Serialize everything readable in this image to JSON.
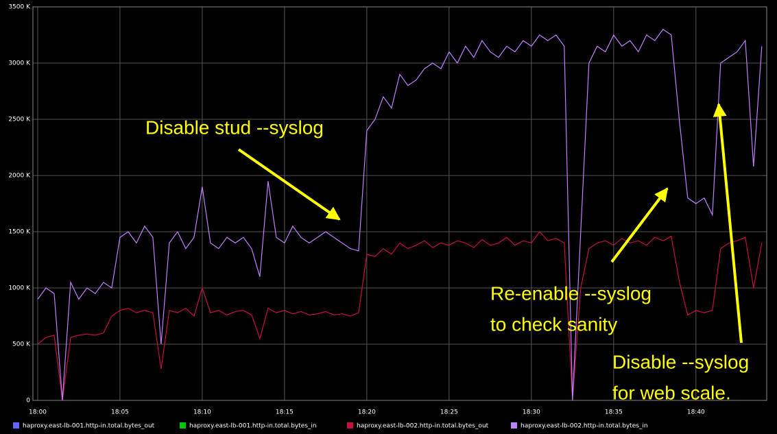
{
  "chart_data": {
    "type": "line",
    "x": [
      0,
      0.5,
      1,
      1.5,
      2,
      2.5,
      3,
      3.5,
      4,
      4.5,
      5,
      5.5,
      6,
      6.5,
      7,
      7.5,
      8,
      8.5,
      9,
      9.5,
      10,
      10.5,
      11,
      11.5,
      12,
      12.5,
      13,
      13.5,
      14,
      14.5,
      15,
      15.5,
      16,
      16.5,
      17,
      17.5,
      18,
      18.5,
      19,
      19.5,
      20,
      20.5,
      21,
      21.5,
      22,
      22.5,
      23,
      23.5,
      24,
      24.5,
      25,
      25.5,
      26,
      26.5,
      27,
      27.5,
      28,
      28.5,
      29,
      29.5,
      30,
      30.5,
      31,
      31.5,
      32,
      32.5,
      33,
      33.5,
      34,
      34.5,
      35,
      35.5,
      36,
      36.5,
      37,
      37.5,
      38,
      38.5,
      39,
      39.5,
      40,
      40.5,
      41,
      41.5,
      42,
      42.5,
      43,
      43.5,
      44
    ],
    "series": [
      {
        "name": "haproxy.east-lb-001.http-in.total.bytes_out",
        "color": "#6464ff",
        "values": [
          null,
          null,
          null,
          null,
          null,
          null,
          null,
          null,
          null,
          null,
          null,
          null,
          null,
          null,
          null,
          null,
          null,
          null,
          null,
          null,
          null,
          null,
          null,
          null,
          null,
          null,
          null,
          null,
          null,
          null,
          null,
          null,
          null,
          null,
          null,
          null,
          null,
          null,
          null,
          null,
          null,
          null,
          null,
          null,
          null,
          null,
          null,
          null,
          null,
          null,
          null,
          null,
          null,
          null,
          null,
          null,
          null,
          null,
          null,
          null,
          null,
          null,
          null,
          null,
          null,
          null,
          null,
          null,
          null,
          null,
          null,
          null,
          null,
          null,
          null,
          null,
          null,
          null,
          null,
          null,
          null,
          null,
          null,
          null,
          null,
          null,
          null,
          null,
          null
        ]
      },
      {
        "name": "haproxy.east-lb-001.http-in.total.bytes_in",
        "color": "#00c800",
        "values": [
          null,
          null,
          null,
          null,
          null,
          null,
          null,
          null,
          null,
          null,
          null,
          null,
          null,
          null,
          null,
          null,
          null,
          null,
          null,
          null,
          null,
          null,
          null,
          null,
          null,
          null,
          null,
          null,
          null,
          null,
          null,
          null,
          null,
          null,
          null,
          null,
          null,
          null,
          null,
          null,
          null,
          null,
          null,
          null,
          null,
          null,
          null,
          null,
          null,
          null,
          null,
          null,
          null,
          null,
          null,
          null,
          null,
          null,
          null,
          null,
          null,
          null,
          null,
          null,
          null,
          null,
          null,
          null,
          null,
          null,
          null,
          null,
          null,
          null,
          null,
          null,
          null,
          null,
          null,
          null,
          null,
          null,
          null,
          null,
          null,
          null,
          null,
          null,
          null
        ]
      },
      {
        "name": "haproxy.east-lb-002.http-in.total.bytes_out",
        "color": "#c8103c",
        "values": [
          500,
          560,
          580,
          0,
          560,
          580,
          590,
          580,
          600,
          750,
          800,
          820,
          780,
          800,
          780,
          280,
          800,
          780,
          820,
          750,
          1000,
          780,
          800,
          760,
          790,
          800,
          760,
          550,
          820,
          780,
          800,
          770,
          790,
          760,
          770,
          790,
          760,
          770,
          750,
          780,
          1300,
          1280,
          1350,
          1300,
          1400,
          1350,
          1380,
          1420,
          1360,
          1400,
          1380,
          1420,
          1400,
          1360,
          1430,
          1380,
          1400,
          1450,
          1380,
          1420,
          1400,
          1500,
          1420,
          1440,
          1400,
          0,
          1000,
          1350,
          1400,
          1420,
          1380,
          1440,
          1400,
          1420,
          1380,
          1450,
          1420,
          1460,
          1050,
          760,
          800,
          780,
          800,
          1350,
          1400,
          1420,
          1450,
          1000,
          1400
        ]
      },
      {
        "name": "haproxy.east-lb-002.http-in.total.bytes_in",
        "color": "#c080ff",
        "values": [
          900,
          1000,
          950,
          0,
          1050,
          900,
          1000,
          950,
          1050,
          1000,
          1450,
          1500,
          1400,
          1550,
          1450,
          500,
          1400,
          1500,
          1350,
          1450,
          1900,
          1400,
          1350,
          1450,
          1400,
          1450,
          1350,
          1100,
          1950,
          1450,
          1400,
          1550,
          1450,
          1400,
          1450,
          1500,
          1450,
          1400,
          1350,
          1330,
          2400,
          2500,
          2700,
          2600,
          2900,
          2800,
          2850,
          2950,
          3000,
          2950,
          3100,
          3000,
          3150,
          3050,
          3200,
          3100,
          3050,
          3150,
          3100,
          3200,
          3150,
          3250,
          3200,
          3250,
          3150,
          0,
          1500,
          3000,
          3150,
          3100,
          3250,
          3150,
          3200,
          3100,
          3250,
          3200,
          3300,
          3250,
          2480,
          1800,
          1750,
          1800,
          1650,
          3000,
          3050,
          3100,
          3200,
          2080,
          3150
        ]
      }
    ],
    "xlim": [
      -0.29,
      44.3
    ],
    "xticks": [
      {
        "value": 0,
        "label": "18:00"
      },
      {
        "value": 5,
        "label": "18:05"
      },
      {
        "value": 10,
        "label": "18:10"
      },
      {
        "value": 15,
        "label": "18:15"
      },
      {
        "value": 20,
        "label": "18:20"
      },
      {
        "value": 25,
        "label": "18:25"
      },
      {
        "value": 30,
        "label": "18:30"
      },
      {
        "value": 35,
        "label": "18:35"
      },
      {
        "value": 40,
        "label": "18:40"
      }
    ],
    "ylim": [
      0,
      3500
    ],
    "yticks": [
      {
        "value": 0,
        "label": "0"
      },
      {
        "value": 500,
        "label": "500 K"
      },
      {
        "value": 1000,
        "label": "1000 K"
      },
      {
        "value": 1500,
        "label": "1500 K"
      },
      {
        "value": 2000,
        "label": "2000 K"
      },
      {
        "value": 2500,
        "label": "2500 K"
      },
      {
        "value": 3000,
        "label": "3000 K"
      },
      {
        "value": 3500,
        "label": "3500 K"
      }
    ],
    "grid": true,
    "legend": "bottom",
    "annotations": [
      "Disable stud --syslog",
      "Re-enable --syslog",
      "to check sanity",
      "Disable --syslog",
      "for web scale."
    ]
  }
}
